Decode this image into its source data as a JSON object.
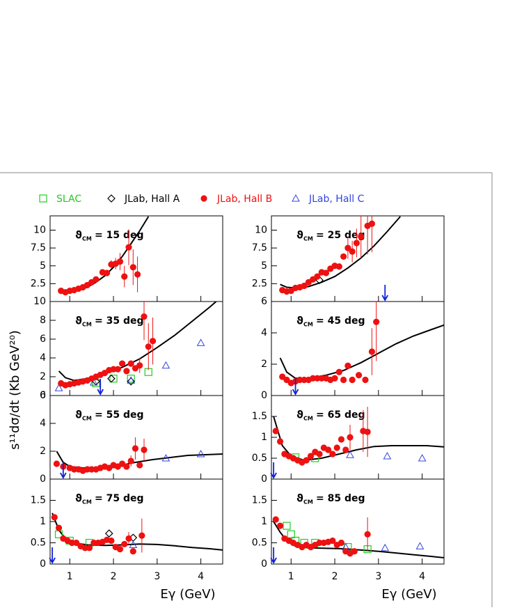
{
  "legend": [
    {
      "name": "SLAC",
      "color": "#22cc22",
      "marker": "square"
    },
    {
      "name": "JLab, Hall A",
      "color": "#000000",
      "marker": "diamond"
    },
    {
      "name": "JLab, Hall B",
      "color": "#ee1111",
      "marker": "circle"
    },
    {
      "name": "JLab, Hall C",
      "color": "#3344dd",
      "marker": "triangle"
    }
  ],
  "y_axis_label": "s¹¹dσ/dt (Kb GeV²⁰)",
  "x_axis_label": "Eγ (GeV)",
  "arrow_color": "#1122dd",
  "chart_data": [
    {
      "type": "scatter",
      "symbol": "ϑ",
      "subscript": "CM",
      "text": "= 15 deg",
      "xlim": [
        0.55,
        4.5
      ],
      "xticks": [
        1,
        2,
        3,
        4
      ],
      "ylim": [
        0,
        12
      ],
      "yticks": [
        2.5,
        5,
        7.5,
        10
      ],
      "hall_b": {
        "x": [
          0.8,
          0.9,
          1.0,
          1.1,
          1.2,
          1.3,
          1.4,
          1.5,
          1.6,
          1.75,
          1.85,
          1.95,
          2.05,
          2.15,
          2.25,
          2.35,
          2.45,
          2.55
        ],
        "values": [
          1.5,
          1.3,
          1.5,
          1.6,
          1.8,
          2.0,
          2.3,
          2.7,
          3.1,
          4.1,
          4.0,
          5.2,
          5.3,
          5.6,
          3.5,
          7.6,
          4.8,
          3.8
        ],
        "errors": [
          null,
          null,
          null,
          null,
          null,
          null,
          null,
          null,
          null,
          null,
          null,
          0.6,
          0.8,
          1.2,
          1.5,
          2.5,
          2.5,
          2.5
        ]
      },
      "curve": {
        "x": [
          0.8,
          1.0,
          1.2,
          1.4,
          1.6,
          1.8,
          2.0,
          2.2,
          2.4,
          2.6,
          2.8
        ],
        "y": [
          1.3,
          1.4,
          1.6,
          2.0,
          2.7,
          3.6,
          4.8,
          6.3,
          8.1,
          9.9,
          11.9
        ]
      }
    },
    {
      "type": "scatter",
      "symbol": "ϑ",
      "subscript": "CM",
      "text": "= 25 deg",
      "xlim": [
        0.55,
        4.5
      ],
      "xticks": [
        1,
        2,
        3,
        4
      ],
      "ylim": [
        0,
        12
      ],
      "yticks": [
        2.5,
        5,
        7.5,
        10
      ],
      "hall_b": {
        "x": [
          0.8,
          0.9,
          1.0,
          1.1,
          1.2,
          1.3,
          1.4,
          1.5,
          1.6,
          1.7,
          1.8,
          1.9,
          2.0,
          2.1,
          2.2,
          2.3,
          2.4,
          2.5,
          2.6,
          2.75,
          2.85
        ],
        "values": [
          1.6,
          1.4,
          1.5,
          1.9,
          2.0,
          2.2,
          2.7,
          3.1,
          3.5,
          4.1,
          4.0,
          4.6,
          5.0,
          4.9,
          6.3,
          7.5,
          7.0,
          8.2,
          9.1,
          10.6,
          10.9
        ],
        "errors": [
          null,
          null,
          null,
          null,
          null,
          null,
          null,
          null,
          null,
          null,
          null,
          null,
          null,
          null,
          null,
          1.5,
          1.5,
          2.0,
          3,
          4,
          4
        ]
      },
      "hall_a": {
        "x": [
          1.65
        ],
        "values": [
          3.0
        ]
      },
      "curve": {
        "x": [
          0.75,
          0.9,
          1.1,
          1.4,
          1.7,
          2.0,
          2.3,
          2.6,
          2.9,
          3.2,
          3.5
        ],
        "y": [
          2.4,
          2.0,
          1.9,
          2.1,
          2.7,
          3.5,
          4.7,
          6.1,
          7.8,
          9.8,
          11.9
        ]
      },
      "arrow_x": 3.15
    },
    {
      "type": "scatter",
      "symbol": "ϑ",
      "subscript": "CM",
      "text": "= 35 deg",
      "xlim": [
        0.55,
        4.5
      ],
      "xticks": [
        1,
        2,
        3,
        4
      ],
      "ylim": [
        0,
        10
      ],
      "yticks": [
        0,
        2,
        4,
        6,
        8,
        10
      ],
      "hall_b": {
        "x": [
          0.8,
          0.9,
          1.0,
          1.1,
          1.2,
          1.3,
          1.4,
          1.5,
          1.6,
          1.7,
          1.8,
          1.9,
          2.0,
          2.1,
          2.2,
          2.3,
          2.4,
          2.5,
          2.6,
          2.7,
          2.8,
          2.9
        ],
        "values": [
          1.3,
          1.1,
          1.2,
          1.3,
          1.4,
          1.5,
          1.6,
          1.8,
          2.0,
          2.2,
          2.4,
          2.7,
          2.8,
          2.8,
          3.4,
          2.6,
          3.4,
          2.9,
          3.2,
          8.4,
          5.2,
          5.8
        ],
        "errors": [
          null,
          null,
          null,
          null,
          null,
          null,
          null,
          null,
          null,
          null,
          null,
          null,
          null,
          null,
          null,
          null,
          null,
          null,
          0.8,
          2.5,
          2.5,
          2.5
        ]
      },
      "hall_c": {
        "x": [
          0.75,
          1.55,
          2.4,
          3.2,
          4.0
        ],
        "values": [
          0.8,
          1.4,
          1.6,
          3.2,
          5.6
        ]
      },
      "slac": {
        "x": [
          1.6,
          2.0,
          2.4,
          2.8
        ],
        "values": [
          1.3,
          1.8,
          1.8,
          2.5
        ]
      },
      "hall_a": {
        "x": [
          1.6,
          1.95,
          2.4
        ],
        "values": [
          1.5,
          1.8,
          1.5
        ]
      },
      "curve": {
        "x": [
          0.75,
          0.9,
          1.1,
          1.4,
          1.8,
          2.2,
          2.6,
          3.0,
          3.4,
          3.8,
          4.2,
          4.35
        ],
        "y": [
          2.6,
          1.9,
          1.6,
          1.8,
          2.3,
          3.0,
          3.9,
          5.1,
          6.4,
          7.9,
          9.4,
          10
        ]
      },
      "arrow_x": 1.7
    },
    {
      "type": "scatter",
      "symbol": "ϑ",
      "subscript": "CM",
      "text": "= 45 deg",
      "xlim": [
        0.55,
        4.5
      ],
      "xticks": [
        1,
        2,
        3,
        4
      ],
      "ylim": [
        0,
        6
      ],
      "yticks": [
        0,
        2,
        4,
        6
      ],
      "hall_b": {
        "x": [
          0.8,
          0.9,
          1.0,
          1.1,
          1.2,
          1.3,
          1.4,
          1.5,
          1.6,
          1.7,
          1.8,
          1.9,
          2.0,
          2.1,
          2.2,
          2.3,
          2.4,
          2.55,
          2.7,
          2.85,
          2.95
        ],
        "values": [
          1.2,
          1.0,
          0.8,
          0.9,
          1.0,
          1.0,
          1.0,
          1.1,
          1.1,
          1.1,
          1.1,
          1.0,
          1.1,
          1.5,
          1.0,
          1.9,
          1.0,
          1.3,
          1.0,
          2.8,
          4.7
        ],
        "errors": [
          null,
          null,
          null,
          null,
          null,
          null,
          null,
          null,
          null,
          null,
          null,
          null,
          null,
          null,
          null,
          null,
          null,
          null,
          null,
          1.5,
          2.5
        ]
      },
      "curve": {
        "x": [
          0.75,
          0.9,
          1.1,
          1.4,
          1.8,
          2.2,
          2.6,
          3.0,
          3.4,
          3.8,
          4.2,
          4.5
        ],
        "y": [
          2.4,
          1.5,
          1.1,
          1.1,
          1.3,
          1.6,
          2.1,
          2.7,
          3.3,
          3.8,
          4.2,
          4.5
        ]
      },
      "arrow_x": 1.1
    },
    {
      "type": "scatter",
      "symbol": "ϑ",
      "subscript": "CM",
      "text": "= 55 deg",
      "xlim": [
        0.55,
        4.5
      ],
      "xticks": [
        1,
        2,
        3,
        4
      ],
      "ylim": [
        0,
        6
      ],
      "yticks": [
        0,
        2,
        4,
        6
      ],
      "hall_b": {
        "x": [
          0.7,
          0.85,
          1.0,
          1.1,
          1.2,
          1.3,
          1.4,
          1.5,
          1.6,
          1.7,
          1.8,
          1.9,
          2.0,
          2.1,
          2.2,
          2.3,
          2.4,
          2.5,
          2.6,
          2.7
        ],
        "values": [
          1.1,
          0.9,
          0.8,
          0.7,
          0.7,
          0.6,
          0.7,
          0.7,
          0.7,
          0.8,
          0.9,
          0.8,
          1.0,
          0.9,
          1.1,
          0.9,
          1.3,
          2.2,
          1.0,
          2.1
        ],
        "errors": [
          null,
          null,
          null,
          null,
          null,
          null,
          null,
          null,
          null,
          null,
          null,
          null,
          null,
          null,
          null,
          null,
          0.4,
          0.8,
          null,
          0.8
        ]
      },
      "hall_c": {
        "x": [
          3.2,
          4.0
        ],
        "values": [
          1.5,
          1.8
        ]
      },
      "curve": {
        "x": [
          0.7,
          0.85,
          1.0,
          1.3,
          1.7,
          2.1,
          2.5,
          2.9,
          3.3,
          3.7,
          4.1,
          4.5
        ],
        "y": [
          2.0,
          1.2,
          0.9,
          0.8,
          0.8,
          0.95,
          1.2,
          1.4,
          1.55,
          1.7,
          1.75,
          1.8
        ]
      },
      "arrow_x": 0.85
    },
    {
      "type": "scatter",
      "symbol": "ϑ",
      "subscript": "CM",
      "text": "= 65 deg",
      "xlim": [
        0.55,
        4.5
      ],
      "xticks": [
        1,
        2,
        3,
        4
      ],
      "ylim": [
        0,
        2
      ],
      "yticks": [
        0,
        0.5,
        1,
        1.5
      ],
      "hall_b": {
        "x": [
          0.65,
          0.75,
          0.85,
          0.95,
          1.05,
          1.15,
          1.25,
          1.35,
          1.45,
          1.55,
          1.65,
          1.75,
          1.85,
          1.95,
          2.05,
          2.15,
          2.25,
          2.35,
          2.65,
          2.75
        ],
        "values": [
          1.15,
          0.9,
          0.6,
          0.55,
          0.5,
          0.45,
          0.4,
          0.45,
          0.55,
          0.65,
          0.6,
          0.75,
          0.7,
          0.6,
          0.75,
          0.95,
          0.7,
          1.0,
          1.15,
          1.13
        ],
        "errors": [
          null,
          null,
          null,
          null,
          null,
          null,
          null,
          null,
          null,
          null,
          null,
          null,
          null,
          null,
          null,
          null,
          null,
          0.3,
          0.5,
          0.6
        ]
      },
      "slac": {
        "x": [
          1.1,
          1.55
        ],
        "values": [
          0.52,
          0.5
        ]
      },
      "hall_c": {
        "x": [
          2.35,
          3.2,
          4.0
        ],
        "values": [
          0.58,
          0.55,
          0.5
        ]
      },
      "curve": {
        "x": [
          0.6,
          0.8,
          1.0,
          1.3,
          1.7,
          2.1,
          2.5,
          2.9,
          3.3,
          3.7,
          4.1,
          4.5
        ],
        "y": [
          1.5,
          0.8,
          0.55,
          0.45,
          0.5,
          0.6,
          0.7,
          0.78,
          0.8,
          0.8,
          0.8,
          0.77
        ]
      },
      "arrow_x": 0.6
    },
    {
      "type": "scatter",
      "symbol": "ϑ",
      "subscript": "CM",
      "text": "= 75 deg",
      "xlim": [
        0.55,
        4.5
      ],
      "xticks": [
        1,
        2,
        3,
        4
      ],
      "ylim": [
        0,
        2
      ],
      "yticks": [
        0,
        0.5,
        1,
        1.5
      ],
      "hall_b": {
        "x": [
          0.65,
          0.75,
          0.85,
          0.95,
          1.05,
          1.15,
          1.25,
          1.35,
          1.45,
          1.55,
          1.65,
          1.75,
          1.85,
          1.95,
          2.05,
          2.15,
          2.25,
          2.35,
          2.45,
          2.65
        ],
        "values": [
          1.1,
          0.85,
          0.6,
          0.55,
          0.5,
          0.5,
          0.42,
          0.38,
          0.38,
          0.5,
          0.5,
          0.52,
          0.57,
          0.55,
          0.4,
          0.35,
          0.47,
          0.6,
          0.3,
          0.67
        ],
        "errors": [
          null,
          null,
          null,
          null,
          null,
          null,
          null,
          null,
          null,
          null,
          null,
          null,
          null,
          null,
          null,
          null,
          null,
          0.15,
          null,
          0.4
        ]
      },
      "slac": {
        "x": [
          0.75,
          1.0,
          1.45
        ],
        "values": [
          0.7,
          0.55,
          0.5
        ]
      },
      "hall_a": {
        "x": [
          1.9,
          2.45
        ],
        "values": [
          0.72,
          0.62
        ]
      },
      "hall_c": {
        "x": [
          2.45
        ],
        "values": [
          0.45
        ]
      },
      "curve": {
        "x": [
          0.6,
          0.75,
          0.9,
          1.1,
          1.4,
          1.8,
          2.2,
          2.6,
          3.0,
          3.4,
          3.8,
          4.2,
          4.5
        ],
        "y": [
          1.2,
          0.8,
          0.6,
          0.5,
          0.45,
          0.44,
          0.45,
          0.47,
          0.46,
          0.43,
          0.39,
          0.36,
          0.33
        ]
      },
      "arrow_x": 0.6
    },
    {
      "type": "scatter",
      "symbol": "ϑ",
      "subscript": "CM",
      "text": "= 85 deg",
      "xlim": [
        0.55,
        4.5
      ],
      "xticks": [
        1,
        2,
        3,
        4
      ],
      "ylim": [
        0,
        2
      ],
      "yticks": [
        0,
        0.5,
        1,
        1.5
      ],
      "hall_b": {
        "x": [
          0.65,
          0.75,
          0.85,
          0.95,
          1.05,
          1.15,
          1.25,
          1.35,
          1.45,
          1.55,
          1.65,
          1.75,
          1.85,
          1.95,
          2.05,
          2.15,
          2.25,
          2.35,
          2.45,
          2.75
        ],
        "values": [
          1.05,
          0.9,
          0.6,
          0.55,
          0.5,
          0.45,
          0.4,
          0.45,
          0.4,
          0.45,
          0.5,
          0.5,
          0.52,
          0.55,
          0.45,
          0.5,
          0.3,
          0.25,
          0.3,
          0.7
        ],
        "errors": [
          null,
          null,
          null,
          null,
          null,
          null,
          null,
          null,
          null,
          null,
          null,
          null,
          null,
          null,
          null,
          null,
          null,
          null,
          null,
          0.4
        ]
      },
      "slac": {
        "x": [
          0.9,
          1.0,
          1.1,
          1.3,
          1.55,
          2.3,
          2.75
        ],
        "values": [
          0.9,
          0.7,
          0.55,
          0.5,
          0.5,
          0.4,
          0.35
        ]
      },
      "hall_c": {
        "x": [
          2.25,
          3.15,
          3.95
        ],
        "values": [
          0.4,
          0.38,
          0.42
        ]
      },
      "curve": {
        "x": [
          0.6,
          0.75,
          0.9,
          1.1,
          1.4,
          1.8,
          2.2,
          2.6,
          3.0,
          3.4,
          3.8,
          4.2,
          4.5
        ],
        "y": [
          1.0,
          0.75,
          0.55,
          0.42,
          0.38,
          0.37,
          0.36,
          0.33,
          0.3,
          0.26,
          0.22,
          0.18,
          0.15
        ]
      },
      "arrow_x": 0.6
    }
  ]
}
